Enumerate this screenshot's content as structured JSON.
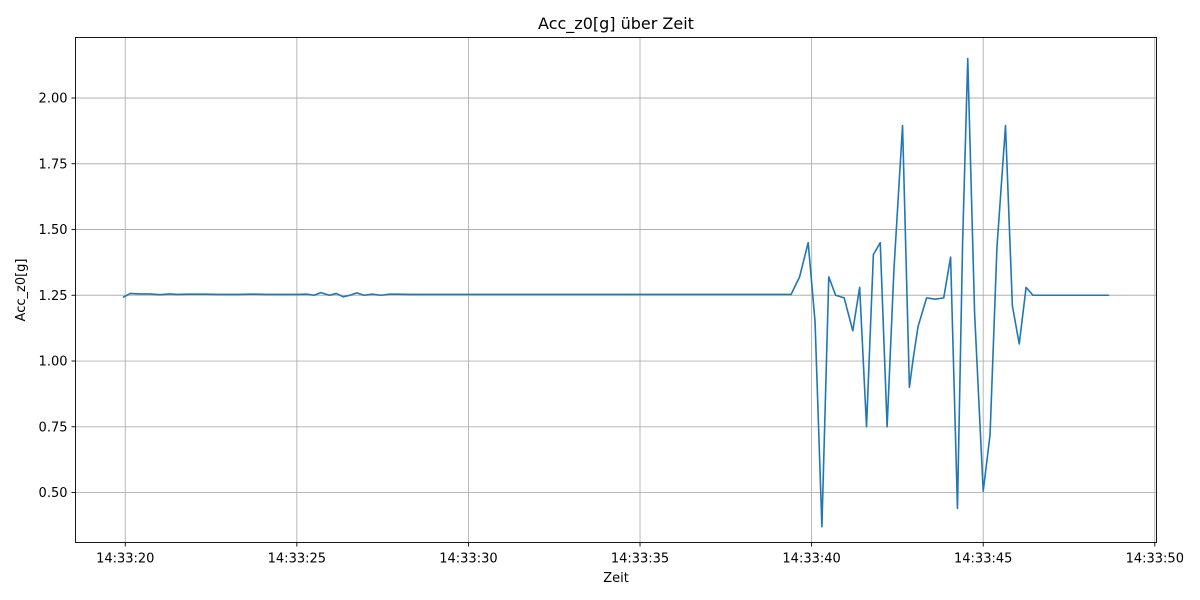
{
  "chart_data": {
    "type": "line",
    "title": "Acc_z0[g] über Zeit",
    "xlabel": "Zeit",
    "ylabel": "Acc_z0[g]",
    "x_unit": "time of day",
    "xlim": [
      "14:33:18.550",
      "14:33:50.050"
    ],
    "ylim": [
      0.31,
      2.23
    ],
    "x_ticks": [
      "14:33:20",
      "14:33:25",
      "14:33:30",
      "14:33:35",
      "14:33:40",
      "14:33:45",
      "14:33:50"
    ],
    "y_ticks": [
      "0.50",
      "0.75",
      "1.00",
      "1.25",
      "1.50",
      "1.75",
      "2.00"
    ],
    "y_tick_values": [
      0.5,
      0.75,
      1.0,
      1.25,
      1.5,
      1.75,
      2.0
    ],
    "grid": true,
    "legend": "none",
    "series": [
      {
        "color": "#1f77b4",
        "x": [
          "14:33:19.95",
          "14:33:20.15",
          "14:33:20.40",
          "14:33:20.70",
          "14:33:21.00",
          "14:33:21.30",
          "14:33:21.50",
          "14:33:21.80",
          "14:33:22.10",
          "14:33:22.40",
          "14:33:22.70",
          "14:33:23.00",
          "14:33:23.30",
          "14:33:23.60",
          "14:33:23.85",
          "14:33:24.10",
          "14:33:24.40",
          "14:33:24.70",
          "14:33:25.00",
          "14:33:25.30",
          "14:33:25.50",
          "14:33:25.70",
          "14:33:25.95",
          "14:33:26.15",
          "14:33:26.35",
          "14:33:26.55",
          "14:33:26.75",
          "14:33:26.95",
          "14:33:27.20",
          "14:33:27.45",
          "14:33:27.70",
          "14:33:28.00",
          "14:33:28.30",
          "14:33:28.60",
          "14:33:28.90",
          "14:33:29.20",
          "14:33:29.50",
          "14:33:29.80",
          "14:33:30.10",
          "14:33:30.40",
          "14:33:30.70",
          "14:33:31.00",
          "14:33:31.30",
          "14:33:31.60",
          "14:33:31.90",
          "14:33:32.20",
          "14:33:32.50",
          "14:33:32.80",
          "14:33:33.10",
          "14:33:33.40",
          "14:33:33.70",
          "14:33:34.00",
          "14:33:34.30",
          "14:33:34.60",
          "14:33:34.90",
          "14:33:35.20",
          "14:33:35.50",
          "14:33:35.80",
          "14:33:36.10",
          "14:33:36.40",
          "14:33:36.70",
          "14:33:37.00",
          "14:33:37.30",
          "14:33:37.60",
          "14:33:37.90",
          "14:33:38.20",
          "14:33:38.50",
          "14:33:38.80",
          "14:33:39.10",
          "14:33:39.40",
          "14:33:39.65",
          "14:33:39.90",
          "14:33:40.10",
          "14:33:40.30",
          "14:33:40.50",
          "14:33:40.70",
          "14:33:40.95",
          "14:33:41.20",
          "14:33:41.40",
          "14:33:41.60",
          "14:33:41.80",
          "14:33:42.00",
          "14:33:42.20",
          "14:33:42.40",
          "14:33:42.65",
          "14:33:42.85",
          "14:33:42.95",
          "14:33:43.10",
          "14:33:43.35",
          "14:33:43.60",
          "14:33:43.85",
          "14:33:44.05",
          "14:33:44.25",
          "14:33:44.40",
          "14:33:44.55",
          "14:33:44.75",
          "14:33:45.00",
          "14:33:45.20",
          "14:33:45.40",
          "14:33:45.65",
          "14:33:45.85",
          "14:33:46.05",
          "14:33:46.25",
          "14:33:46.45",
          "14:33:46.70",
          "14:33:47.00",
          "14:33:47.30",
          "14:33:47.60",
          "14:33:47.90",
          "14:33:48.20",
          "14:33:48.50",
          "14:33:48.65"
        ],
        "values": [
          1.243,
          1.257,
          1.255,
          1.255,
          1.252,
          1.255,
          1.253,
          1.254,
          1.254,
          1.254,
          1.253,
          1.253,
          1.253,
          1.254,
          1.254,
          1.253,
          1.253,
          1.253,
          1.253,
          1.254,
          1.25,
          1.26,
          1.25,
          1.257,
          1.244,
          1.25,
          1.259,
          1.25,
          1.254,
          1.25,
          1.254,
          1.254,
          1.253,
          1.253,
          1.253,
          1.253,
          1.253,
          1.253,
          1.253,
          1.253,
          1.253,
          1.253,
          1.253,
          1.253,
          1.253,
          1.253,
          1.253,
          1.253,
          1.253,
          1.253,
          1.253,
          1.253,
          1.253,
          1.253,
          1.253,
          1.253,
          1.253,
          1.253,
          1.253,
          1.253,
          1.253,
          1.253,
          1.253,
          1.253,
          1.253,
          1.253,
          1.253,
          1.253,
          1.253,
          1.253,
          1.32,
          1.45,
          1.15,
          0.37,
          1.32,
          1.25,
          1.24,
          1.115,
          1.28,
          0.75,
          1.405,
          1.45,
          0.75,
          1.35,
          1.895,
          0.9,
          1.0,
          1.13,
          1.24,
          1.235,
          1.24,
          1.395,
          0.44,
          1.45,
          2.15,
          1.18,
          0.505,
          0.72,
          1.43,
          1.895,
          1.21,
          1.065,
          1.28,
          1.25,
          1.25,
          1.25,
          1.25,
          1.25,
          1.25,
          1.25,
          1.25,
          1.25
        ]
      }
    ]
  }
}
